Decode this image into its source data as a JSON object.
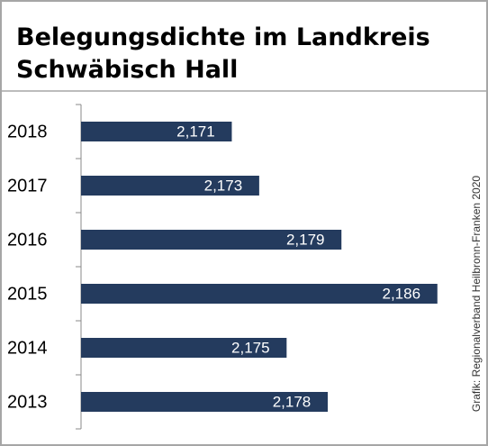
{
  "chart_data": {
    "type": "barh",
    "title": "Belegungsdichte im Landkreis Schwäbisch Hall",
    "categories": [
      "2018",
      "2017",
      "2016",
      "2015",
      "2014",
      "2013"
    ],
    "values": [
      2.171,
      2.173,
      2.179,
      2.186,
      2.175,
      2.178
    ],
    "value_labels": [
      "2,171",
      "2,173",
      "2,179",
      "2,186",
      "2,175",
      "2,178"
    ],
    "color": "#243b5e",
    "xlim": [
      2.16,
      2.187
    ],
    "source": "Grafik: Regionalverband Heilbronn-Franken 2020"
  }
}
